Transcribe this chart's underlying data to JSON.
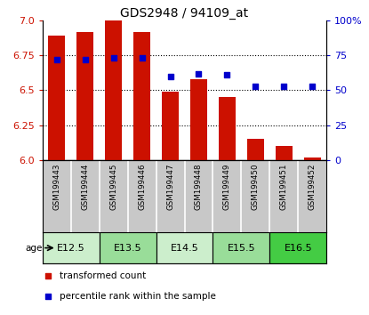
{
  "title": "GDS2948 / 94109_at",
  "samples": [
    "GSM199443",
    "GSM199444",
    "GSM199445",
    "GSM199446",
    "GSM199447",
    "GSM199448",
    "GSM199449",
    "GSM199450",
    "GSM199451",
    "GSM199452"
  ],
  "bar_values": [
    6.89,
    6.92,
    7.0,
    6.92,
    6.49,
    6.58,
    6.45,
    6.15,
    6.1,
    6.02
  ],
  "percentile_values": [
    72,
    72,
    73,
    73,
    60,
    62,
    61,
    53,
    53,
    53
  ],
  "ylim_left": [
    6.0,
    7.0
  ],
  "ylim_right": [
    0,
    100
  ],
  "yticks_left": [
    6.0,
    6.25,
    6.5,
    6.75,
    7.0
  ],
  "yticks_right": [
    0,
    25,
    50,
    75,
    100
  ],
  "bar_color": "#cc1100",
  "scatter_color": "#0000cc",
  "bar_width": 0.6,
  "age_groups": [
    {
      "label": "E12.5",
      "start": 0,
      "end": 2,
      "color": "#cceecc"
    },
    {
      "label": "E13.5",
      "start": 2,
      "end": 4,
      "color": "#99dd99"
    },
    {
      "label": "E14.5",
      "start": 4,
      "end": 6,
      "color": "#cceecc"
    },
    {
      "label": "E15.5",
      "start": 6,
      "end": 8,
      "color": "#99dd99"
    },
    {
      "label": "E16.5",
      "start": 8,
      "end": 10,
      "color": "#44cc44"
    }
  ],
  "left_tick_color": "#cc1100",
  "right_tick_color": "#0000cc",
  "background_label": "#c8c8c8"
}
